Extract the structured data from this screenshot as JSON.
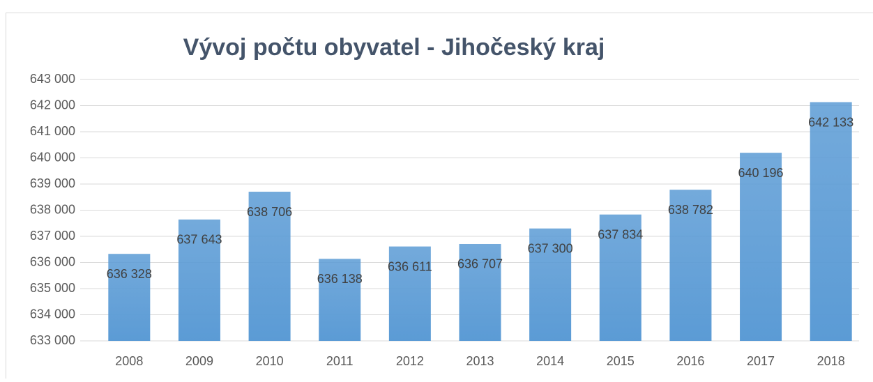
{
  "chart_data": {
    "type": "bar",
    "title": "Vývoj počtu obyvatel - Jihočeský kraj",
    "categories": [
      "2008",
      "2009",
      "2010",
      "2011",
      "2012",
      "2013",
      "2014",
      "2015",
      "2016",
      "2017",
      "2018"
    ],
    "values": [
      636328,
      637643,
      638706,
      636138,
      636611,
      636707,
      637300,
      637834,
      638782,
      640196,
      642133
    ],
    "value_labels": [
      "636 328",
      "637 643",
      "638 706",
      "636 138",
      "636 611",
      "636 707",
      "637 300",
      "637 834",
      "638 782",
      "640 196",
      "642 133"
    ],
    "color": "#5b9bd5",
    "ylim": [
      633000,
      643000
    ],
    "yticks": [
      {
        "value": 633000,
        "label": "633 000"
      },
      {
        "value": 634000,
        "label": "634 000"
      },
      {
        "value": 635000,
        "label": "635 000"
      },
      {
        "value": 636000,
        "label": "636 000"
      },
      {
        "value": 637000,
        "label": "637 000"
      },
      {
        "value": 638000,
        "label": "638 000"
      },
      {
        "value": 639000,
        "label": "639 000"
      },
      {
        "value": 640000,
        "label": "640 000"
      },
      {
        "value": 641000,
        "label": "641 000"
      },
      {
        "value": 642000,
        "label": "642 000"
      },
      {
        "value": 643000,
        "label": "643 000"
      }
    ],
    "grid": true
  }
}
